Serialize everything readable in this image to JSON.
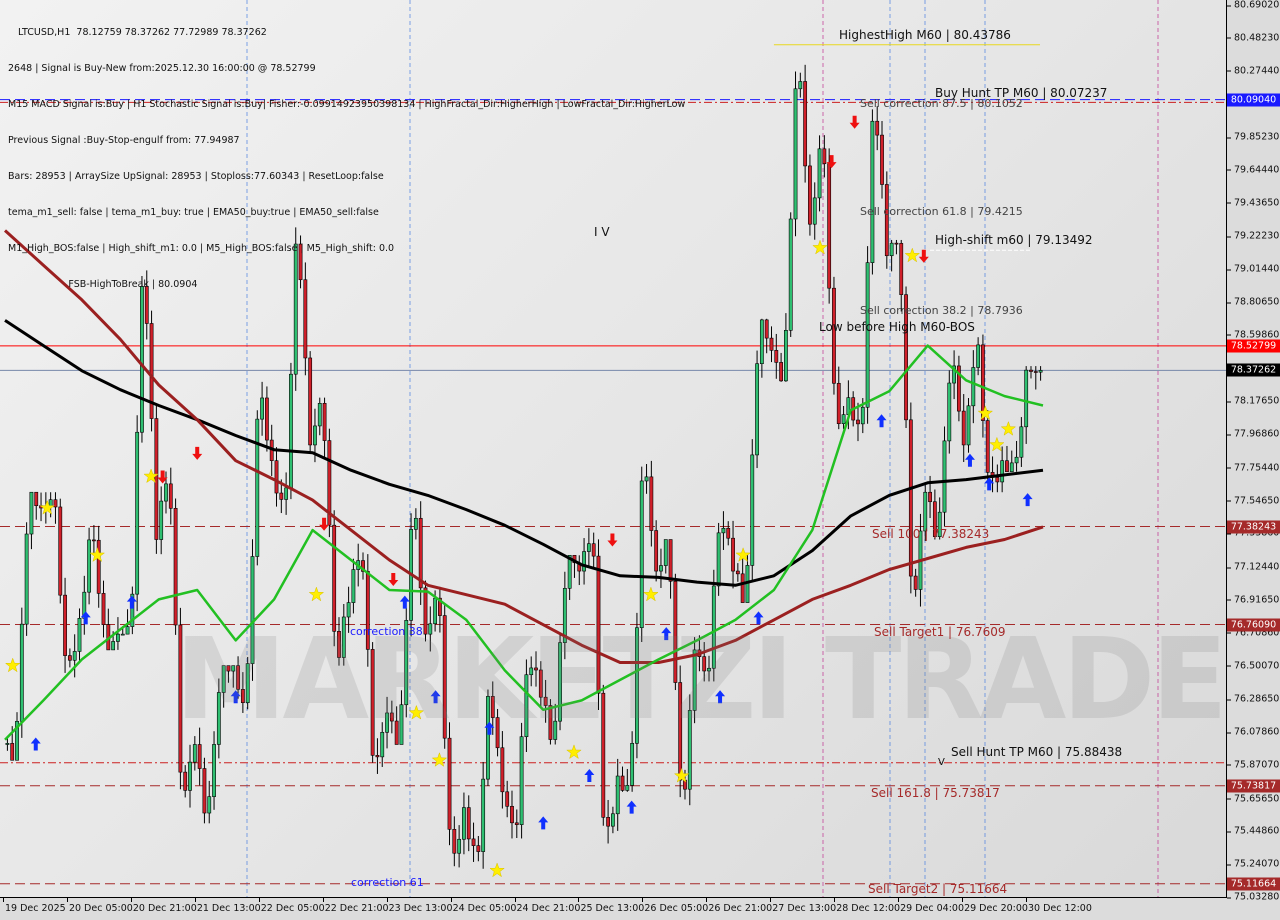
{
  "info_lines": [
    "LTCUSD,H1  78.12759 78.37262 77.72989 78.37262",
    "2648 | Signal is Buy-New from:2025.12.30 16:00:00 @ 78.52799",
    "M15 MACD Signal is:Buy | H1 Stochastic Signal is:Buy| Fisher:-0.09914923950398134 | HighFractal_Dir:HigherHigh | LowFractal_Dir:HigherLow",
    "Previous Signal :Buy-Stop-engulf from: 77.94987",
    "Bars: 28953 | ArraySize UpSignal: 28953 | Stoploss:77.60343 | ResetLoop:false",
    "tema_m1_sell: false | tema_m1_buy: true | EMA50_buy:true | EMA50_sell:false",
    "M1_High_BOS:false | High_shift_m1: 0.0 | M5_High_BOS:false | M5_High_shift: 0.0",
    "                    FSB-HighToBreak | 80.0904"
  ],
  "chart_labels": {
    "highest_high": "HighestHigh   M60 | 80.43786",
    "buy_hunt_tp": "Buy Hunt TP M60 | 80.07237",
    "sell_corr_875": "Sell correction 87.5 | 80.1052",
    "sell_corr_618": "Sell correction 61.8 | 79.4215",
    "high_shift": "High-shift m60 | 79.13492",
    "sell_corr_382": "Sell correction 38.2 | 78.7936",
    "low_before_high": "Low before High   M60-BOS",
    "sell_100": "Sell 100 | 77.38243",
    "sell_target1": "Sell Target1 | 76.7609",
    "sell_hunt_tp": "Sell Hunt TP M60 | 75.88438",
    "sell_1618": "Sell 161.8 | 75.73817",
    "sell_target2": "Sell Target2 | 75.11664",
    "correction_38": "correction 38",
    "correction_61": "correction 61",
    "wave_iv": "I V",
    "wave_v": "V"
  },
  "watermark": "MARKETZI TRADE",
  "chart_data": {
    "type": "candlestick",
    "symbol": "LTCUSD",
    "timeframe": "H1",
    "ylim": [
      75.0328,
      80.6902
    ],
    "grid": false,
    "y_ticks": [
      "80.69020",
      "80.48230",
      "80.27440",
      "80.06650",
      "79.85230",
      "79.64440",
      "79.43650",
      "79.22230",
      "79.01440",
      "78.80650",
      "78.59860",
      "78.17650",
      "77.96860",
      "77.75440",
      "77.54650",
      "77.33860",
      "77.12440",
      "76.91650",
      "76.70860",
      "76.50070",
      "76.28650",
      "76.07860",
      "75.87070",
      "75.65650",
      "75.44860",
      "75.24070",
      "75.03280"
    ],
    "x_ticks": [
      "19 Dec 2025",
      "20 Dec 05:00",
      "20 Dec 21:00",
      "21 Dec 13:00",
      "22 Dec 05:00",
      "22 Dec 21:00",
      "23 Dec 13:00",
      "24 Dec 05:00",
      "24 Dec 21:00",
      "25 Dec 13:00",
      "26 Dec 05:00",
      "26 Dec 21:00",
      "27 Dec 13:00",
      "28 Dec 12:00",
      "29 Dec 04:00",
      "29 Dec 20:00",
      "30 Dec 12:00"
    ],
    "ohlc_8h": [
      [
        76.0,
        77.6,
        75.9,
        77.5
      ],
      [
        77.5,
        77.6,
        76.4,
        76.8
      ],
      [
        76.8,
        77.4,
        76.6,
        76.7
      ],
      [
        76.7,
        79.2,
        76.7,
        77.3
      ],
      [
        77.3,
        77.8,
        75.6,
        76.0
      ],
      [
        76.0,
        76.5,
        75.5,
        76.5
      ],
      [
        76.5,
        78.3,
        76.2,
        77.8
      ],
      [
        77.8,
        79.36,
        77.4,
        77.9
      ],
      [
        77.9,
        78.2,
        76.5,
        76.9
      ],
      [
        76.9,
        77.3,
        75.8,
        76.2
      ],
      [
        76.2,
        77.6,
        76.0,
        76.7
      ],
      [
        76.7,
        77.0,
        75.2,
        75.6
      ],
      [
        75.6,
        76.4,
        75.2,
        75.7
      ],
      [
        75.7,
        76.6,
        75.4,
        76.3
      ],
      [
        76.3,
        77.2,
        76.0,
        77.1
      ],
      [
        77.1,
        77.4,
        75.3,
        75.8
      ],
      [
        75.8,
        77.9,
        75.7,
        77.1
      ],
      [
        77.1,
        77.3,
        75.5,
        76.6
      ],
      [
        76.6,
        77.5,
        76.4,
        77.1
      ],
      [
        77.1,
        78.7,
        76.9,
        78.5
      ],
      [
        78.5,
        80.43786,
        78.3,
        79.3
      ],
      [
        79.3,
        79.9,
        78.0,
        78.2
      ],
      [
        78.2,
        80.2,
        77.9,
        79.1
      ],
      [
        79.1,
        79.2,
        76.8,
        77.6
      ],
      [
        77.6,
        78.5,
        77.3,
        77.9
      ],
      [
        77.9,
        78.6,
        77.6,
        77.8
      ],
      [
        77.8,
        78.4,
        77.72989,
        78.37262
      ]
    ],
    "moving_averages": [
      {
        "color": "#000000",
        "values": [
          78.69,
          78.53,
          78.37,
          78.25,
          78.15,
          78.06,
          77.96,
          77.87,
          77.85,
          77.74,
          77.65,
          77.58,
          77.49,
          77.39,
          77.27,
          77.14,
          77.07,
          77.06,
          77.03,
          77.01,
          77.07,
          77.23,
          77.45,
          77.58,
          77.66,
          77.68,
          77.71,
          77.74
        ]
      },
      {
        "color": "#9b2020",
        "values": [
          79.26,
          79.04,
          78.82,
          78.57,
          78.28,
          78.06,
          77.8,
          77.68,
          77.55,
          77.36,
          77.17,
          77.01,
          76.95,
          76.89,
          76.76,
          76.63,
          76.52,
          76.52,
          76.57,
          76.66,
          76.79,
          76.92,
          77.01,
          77.11,
          77.18,
          77.25,
          77.3,
          77.38
        ]
      },
      {
        "color": "#22c022",
        "values": [
          76.03,
          76.28,
          76.54,
          76.73,
          76.92,
          76.98,
          76.66,
          76.92,
          77.36,
          77.17,
          76.98,
          76.97,
          76.79,
          76.47,
          76.22,
          76.28,
          76.41,
          76.54,
          76.66,
          76.79,
          76.98,
          77.36,
          78.12,
          78.24,
          78.53,
          78.31,
          78.21,
          78.15
        ]
      }
    ],
    "levels": [
      {
        "price": 80.0904,
        "color": "#1a1aff",
        "style": "dashed",
        "badge": "80.09040"
      },
      {
        "price": 80.07237,
        "color": "#cc2020",
        "style": "dashdot"
      },
      {
        "price": 78.52799,
        "color": "#ff0000",
        "style": "solid",
        "badge": "78.52799"
      },
      {
        "price": 78.37262,
        "color": "#7788aa",
        "style": "solid",
        "badge": "78.37262",
        "badge_color": "#000000"
      },
      {
        "price": 77.38243,
        "color": "#a52a2a",
        "style": "dashed",
        "badge": "77.38243"
      },
      {
        "price": 76.7609,
        "color": "#a52a2a",
        "style": "dashed",
        "badge": "76.76090"
      },
      {
        "price": 75.88438,
        "color": "#cc2020",
        "style": "dashdot"
      },
      {
        "price": 75.73817,
        "color": "#a52a2a",
        "style": "dashed",
        "badge": "75.73817"
      },
      {
        "price": 75.11664,
        "color": "#a52a2a",
        "style": "dashed",
        "badge": "75.11664"
      }
    ],
    "signals": [
      {
        "type": "star",
        "bar": 0.2,
        "price": 76.5
      },
      {
        "type": "star",
        "bar": 1.1,
        "price": 77.5
      },
      {
        "type": "star",
        "bar": 2.4,
        "price": 77.2
      },
      {
        "type": "star",
        "bar": 3.8,
        "price": 77.7
      },
      {
        "type": "star",
        "bar": 8.1,
        "price": 76.95
      },
      {
        "type": "star",
        "bar": 10.7,
        "price": 76.2
      },
      {
        "type": "star",
        "bar": 11.3,
        "price": 75.9
      },
      {
        "type": "star",
        "bar": 12.8,
        "price": 75.2
      },
      {
        "type": "star",
        "bar": 14.8,
        "price": 75.95
      },
      {
        "type": "star",
        "bar": 16.8,
        "price": 76.95
      },
      {
        "type": "star",
        "bar": 17.6,
        "price": 75.8
      },
      {
        "type": "star",
        "bar": 19.2,
        "price": 77.2
      },
      {
        "type": "star",
        "bar": 21.2,
        "price": 79.15
      },
      {
        "type": "star",
        "bar": 23.6,
        "price": 79.1
      },
      {
        "type": "star",
        "bar": 25.5,
        "price": 78.1
      },
      {
        "type": "star",
        "bar": 25.8,
        "price": 77.9
      },
      {
        "type": "star",
        "bar": 26.1,
        "price": 78.0
      },
      {
        "type": "up",
        "bar": 0.8,
        "price": 76.0
      },
      {
        "type": "up",
        "bar": 2.1,
        "price": 76.8
      },
      {
        "type": "up",
        "bar": 3.3,
        "price": 76.9
      },
      {
        "type": "up",
        "bar": 6.0,
        "price": 76.3
      },
      {
        "type": "up",
        "bar": 10.4,
        "price": 76.9
      },
      {
        "type": "up",
        "bar": 11.2,
        "price": 76.3
      },
      {
        "type": "up",
        "bar": 12.6,
        "price": 76.1
      },
      {
        "type": "up",
        "bar": 14.0,
        "price": 75.5
      },
      {
        "type": "up",
        "bar": 15.2,
        "price": 75.8
      },
      {
        "type": "up",
        "bar": 16.3,
        "price": 75.6
      },
      {
        "type": "up",
        "bar": 17.2,
        "price": 76.7
      },
      {
        "type": "up",
        "bar": 18.6,
        "price": 76.3
      },
      {
        "type": "up",
        "bar": 19.6,
        "price": 76.8
      },
      {
        "type": "up",
        "bar": 22.8,
        "price": 78.05
      },
      {
        "type": "up",
        "bar": 25.1,
        "price": 77.8
      },
      {
        "type": "up",
        "bar": 25.6,
        "price": 77.65
      },
      {
        "type": "up",
        "bar": 26.6,
        "price": 77.55
      },
      {
        "type": "down",
        "bar": 4.1,
        "price": 77.7
      },
      {
        "type": "down",
        "bar": 5.0,
        "price": 77.85
      },
      {
        "type": "down",
        "bar": 8.3,
        "price": 77.4
      },
      {
        "type": "down",
        "bar": 10.1,
        "price": 77.05
      },
      {
        "type": "down",
        "bar": 15.8,
        "price": 77.3
      },
      {
        "type": "down",
        "bar": 21.5,
        "price": 79.7
      },
      {
        "type": "down",
        "bar": 22.1,
        "price": 79.95
      },
      {
        "type": "down",
        "bar": 23.9,
        "price": 79.1
      }
    ]
  }
}
